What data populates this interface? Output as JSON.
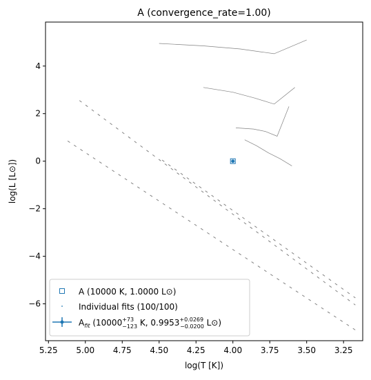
{
  "chart_data": {
    "type": "scatter",
    "title": "A (convergence_rate=1.00)",
    "xlabel": "log(T [K])",
    "ylabel": "log(L [L⊙])",
    "xlim": [
      5.27,
      3.12
    ],
    "ylim": [
      -7.55,
      5.85
    ],
    "x_inverted": true,
    "grid": false,
    "legend_position": "lower-left",
    "xticks": [
      5.25,
      5.0,
      4.75,
      4.5,
      4.25,
      4.0,
      3.75,
      3.5,
      3.25
    ],
    "xtick_labels": [
      "5.25",
      "5.00",
      "4.75",
      "4.50",
      "4.25",
      "4.00",
      "3.75",
      "3.50",
      "3.25"
    ],
    "yticks": [
      4,
      2,
      0,
      -2,
      -4,
      -6
    ],
    "ytick_labels": [
      "4",
      "2",
      "0",
      "−2",
      "−4",
      "−6"
    ],
    "colors": {
      "accent": "#1f77b4",
      "tracks": "#808080",
      "axes": "#000000"
    },
    "series": [
      {
        "name": "A (10000 K, 1.0000 L⊙)",
        "kind": "marker",
        "marker": "open-square",
        "points": [
          {
            "x": 4.0,
            "y": 0.0
          }
        ]
      },
      {
        "name": "Individual fits (100/100)",
        "kind": "scatter",
        "marker": "dot",
        "points": [
          {
            "x": 4.002,
            "y": 0.008
          },
          {
            "x": 3.998,
            "y": -0.006
          },
          {
            "x": 4.004,
            "y": 0.015
          },
          {
            "x": 3.996,
            "y": -0.012
          },
          {
            "x": 4.001,
            "y": 0.002
          },
          {
            "x": 3.999,
            "y": -0.002
          },
          {
            "x": 4.003,
            "y": -0.008
          },
          {
            "x": 3.997,
            "y": 0.01
          },
          {
            "x": 4.005,
            "y": 0.004
          },
          {
            "x": 3.995,
            "y": -0.004
          }
        ]
      },
      {
        "name": "A$_{fit}$ (10000$^{+73}_{-123}$ K, 0.9953$^{+0.0269}_{-0.0200}$ L⊙)",
        "kind": "errorbar",
        "points": [
          {
            "x": 4.0,
            "y": -0.002,
            "xerr": [
              0.0053,
              0.0032
            ],
            "yerr": [
              0.0088,
              0.0116
            ]
          }
        ]
      }
    ],
    "evolutionary_tracks": [
      [
        [
          4.5,
          4.95
        ],
        [
          4.2,
          4.85
        ],
        [
          3.95,
          4.72
        ],
        [
          3.72,
          4.52
        ],
        [
          3.5,
          5.1
        ]
      ],
      [
        [
          4.2,
          3.1
        ],
        [
          4.0,
          2.9
        ],
        [
          3.85,
          2.65
        ],
        [
          3.72,
          2.4
        ],
        [
          3.58,
          3.1
        ]
      ],
      [
        [
          3.98,
          1.4
        ],
        [
          3.86,
          1.35
        ],
        [
          3.78,
          1.25
        ],
        [
          3.7,
          1.05
        ],
        [
          3.62,
          2.3
        ]
      ],
      [
        [
          3.92,
          0.9
        ],
        [
          3.84,
          0.65
        ],
        [
          3.76,
          0.35
        ],
        [
          3.68,
          0.1
        ],
        [
          3.6,
          -0.2
        ]
      ]
    ],
    "isochrones": [
      {
        "x": [
          5.04,
          3.17
        ],
        "y": [
          2.55,
          -6.05
        ]
      },
      {
        "x": [
          4.48,
          3.17
        ],
        "y": [
          0.05,
          -5.75
        ]
      },
      {
        "x": [
          5.12,
          3.17
        ],
        "y": [
          0.85,
          -7.1
        ]
      }
    ],
    "legend": [
      {
        "label": "A (10000 K, 1.0000 L⊙)",
        "marker": "square"
      },
      {
        "label": "Individual fits (100/100)",
        "marker": "dot"
      },
      {
        "label_main": "A",
        "label_sub": "fit",
        "label_rest_1": " (10000",
        "teff_up": "+73",
        "teff_down": "−123",
        "label_rest_2": " K, 0.9953",
        "lum_up": "+0.0269",
        "lum_down": "−0.0200",
        "label_rest_3": " L⊙)",
        "marker": "errorbar"
      }
    ]
  }
}
